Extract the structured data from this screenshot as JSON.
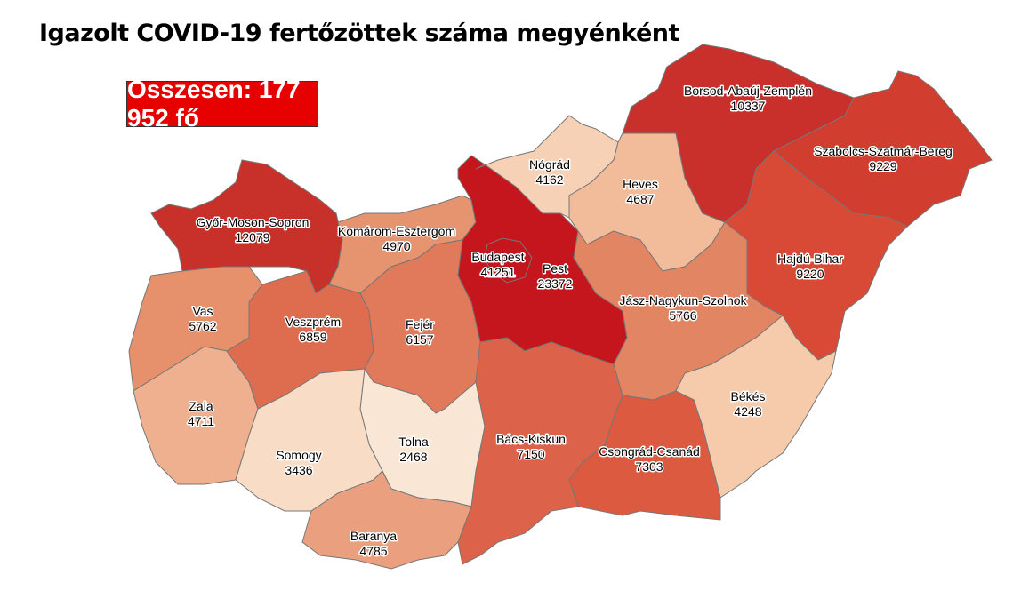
{
  "title": "Igazolt COVID-19 fertőzöttek száma megyénként",
  "total_label": "Összesen: 177 952 fő",
  "counties": [
    {
      "name": "Győr-Moson-Sopron",
      "value": "12079",
      "color": "#c8302a"
    },
    {
      "name": "Vas",
      "value": "5762",
      "color": "#e6906c"
    },
    {
      "name": "Zala",
      "value": "4711",
      "color": "#efb08f"
    },
    {
      "name": "Veszprém",
      "value": "6859",
      "color": "#de6d4f"
    },
    {
      "name": "Komárom-Esztergom",
      "value": "4970",
      "color": "#e6946f"
    },
    {
      "name": "Fejér",
      "value": "6157",
      "color": "#e07a5a"
    },
    {
      "name": "Pest",
      "value": "23372",
      "color": "#c4161c"
    },
    {
      "name": "Budapest",
      "value": "41251",
      "color": "#c4161c"
    },
    {
      "name": "Nógrád",
      "value": "4162",
      "color": "#f6d1b5"
    },
    {
      "name": "Heves",
      "value": "4687",
      "color": "#f2bc9a"
    },
    {
      "name": "Borsod-Abaúj-Zemplén",
      "value": "10337",
      "color": "#c9302c"
    },
    {
      "name": "Szabolcs-Szatmár-Bereg",
      "value": "9229",
      "color": "#d13d2e"
    },
    {
      "name": "Hajdú-Bihar",
      "value": "9220",
      "color": "#d84a35"
    },
    {
      "name": "Jász-Nagykun-Szolnok",
      "value": "5766",
      "color": "#e28563"
    },
    {
      "name": "Békés",
      "value": "4248",
      "color": "#f5cbac"
    },
    {
      "name": "Csongrád-Csanád",
      "value": "7303",
      "color": "#db5a40"
    },
    {
      "name": "Bács-Kiskun",
      "value": "7150",
      "color": "#dc6249"
    },
    {
      "name": "Tolna",
      "value": "2468",
      "color": "#fae6d4"
    },
    {
      "name": "Somogy",
      "value": "3436",
      "color": "#f8dcc6"
    },
    {
      "name": "Baranya",
      "value": "4785",
      "color": "#eaa07e"
    }
  ]
}
